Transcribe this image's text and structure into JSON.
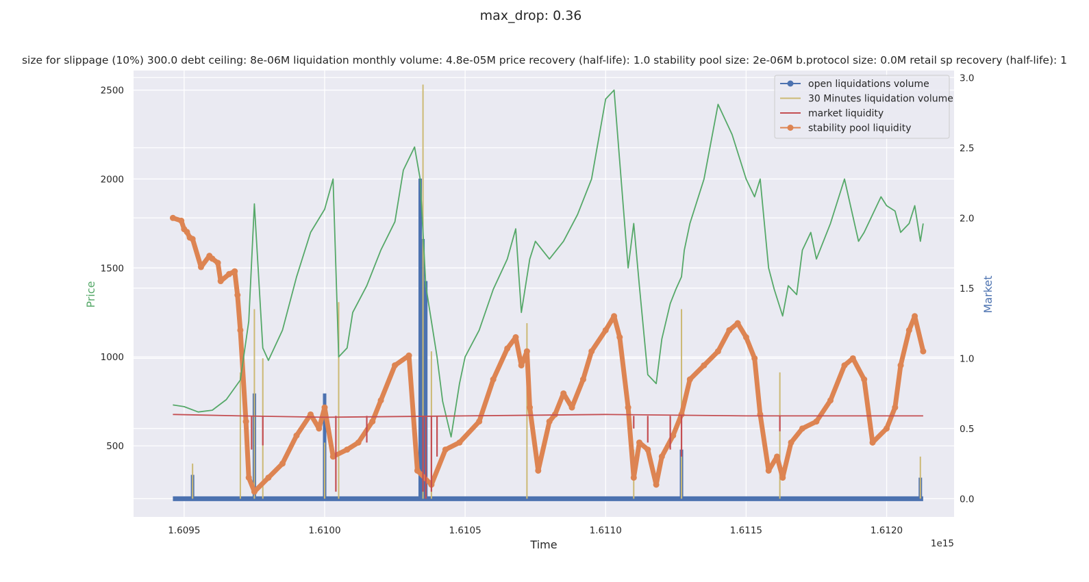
{
  "chart_data": {
    "type": "line",
    "suptitle": "max_drop: 0.36",
    "title": "size for slippage (10%) 300.0 debt ceiling: 8e-06M liquidation monthly volume: 4.8e-05M price recovery (half-life): 1.0 stability pool size: 2e-06M b.protocol size: 0.0M retail sp recovery (half-life): 1",
    "xlabel": "Time",
    "x_offset_label": "1e15",
    "ylabel_left": "Price",
    "ylabel_right": "Market",
    "xlim": [
      1.60932,
      1.61224
    ],
    "ylim_left": [
      100,
      2610
    ],
    "ylim_right": [
      -0.13,
      3.05
    ],
    "x_ticks": [
      1.6095,
      1.61,
      1.6105,
      1.611,
      1.6115,
      1.612
    ],
    "x_tick_labels": [
      "1.6095",
      "1.6100",
      "1.6105",
      "1.6110",
      "1.6115",
      "1.6120"
    ],
    "y_left_ticks": [
      500,
      1000,
      1500,
      2000,
      2500
    ],
    "y_left_tick_labels": [
      "500",
      "1000",
      "1500",
      "2000",
      "2500"
    ],
    "y_right_ticks": [
      0.0,
      0.5,
      1.0,
      1.5,
      2.0,
      2.5,
      3.0
    ],
    "y_right_tick_labels": [
      "0.0",
      "0.5",
      "1.0",
      "1.5",
      "2.0",
      "2.5",
      "3.0"
    ],
    "grid": true,
    "legend_position": "top-right",
    "colors": {
      "price": "#55a868",
      "open_liquidations": "#4c72b0",
      "liquidation_volume": "#ccb974",
      "market_liquidity": "#c44e52",
      "stability_pool": "#dd8452",
      "plot_bg": "#eaeaf2",
      "grid": "#ffffff"
    },
    "price_series": {
      "name": "Price",
      "axis": "left",
      "x": [
        1.60946,
        1.6095,
        1.60955,
        1.6096,
        1.60965,
        1.6097,
        1.60973,
        1.60975,
        1.60978,
        1.6098,
        1.60985,
        1.6099,
        1.60995,
        1.61,
        1.61003,
        1.61005,
        1.61008,
        1.6101,
        1.61015,
        1.6102,
        1.61025,
        1.61028,
        1.61032,
        1.61034,
        1.61036,
        1.61038,
        1.6104,
        1.61042,
        1.61045,
        1.61048,
        1.6105,
        1.61055,
        1.6106,
        1.61065,
        1.61068,
        1.6107,
        1.61073,
        1.61075,
        1.6108,
        1.61085,
        1.6109,
        1.61095,
        1.611,
        1.61103,
        1.61105,
        1.61108,
        1.6111,
        1.61112,
        1.61115,
        1.61118,
        1.6112,
        1.61123,
        1.61125,
        1.61127,
        1.61128,
        1.6113,
        1.61135,
        1.6114,
        1.61145,
        1.6115,
        1.61153,
        1.61155,
        1.61158,
        1.6116,
        1.61163,
        1.61165,
        1.61168,
        1.6117,
        1.61173,
        1.61175,
        1.6118,
        1.61185,
        1.6119,
        1.61192,
        1.61195,
        1.61198,
        1.612,
        1.61203,
        1.61205,
        1.61208,
        1.6121,
        1.61212,
        1.61213
      ],
      "y": [
        730,
        720,
        690,
        700,
        760,
        870,
        1200,
        1860,
        1050,
        980,
        1150,
        1450,
        1700,
        1830,
        2000,
        1000,
        1050,
        1250,
        1400,
        1600,
        1760,
        2050,
        2180,
        2000,
        1400,
        1200,
        1000,
        750,
        550,
        850,
        1000,
        1150,
        1380,
        1550,
        1720,
        1250,
        1550,
        1650,
        1550,
        1650,
        1800,
        2000,
        2450,
        2500,
        2100,
        1500,
        1750,
        1400,
        900,
        850,
        1100,
        1300,
        1380,
        1450,
        1600,
        1750,
        2000,
        2420,
        2250,
        2000,
        1900,
        2000,
        1500,
        1380,
        1230,
        1400,
        1350,
        1600,
        1700,
        1550,
        1750,
        2000,
        1650,
        1700,
        1800,
        1900,
        1850,
        1820,
        1700,
        1750,
        1850,
        1650,
        1750
      ]
    },
    "stability_pool_series": {
      "name": "stability pool liquidity",
      "axis": "right",
      "x": [
        1.60946,
        1.60949,
        1.6095,
        1.60951,
        1.60952,
        1.60953,
        1.60956,
        1.60959,
        1.6096,
        1.60962,
        1.60963,
        1.60966,
        1.60968,
        1.60969,
        1.6097,
        1.60972,
        1.60973,
        1.60975,
        1.6098,
        1.60985,
        1.6099,
        1.60995,
        1.60998,
        1.61,
        1.61003,
        1.61008,
        1.61012,
        1.61017,
        1.6102,
        1.61025,
        1.6103,
        1.61033,
        1.61038,
        1.61043,
        1.61048,
        1.61055,
        1.6106,
        1.61065,
        1.61068,
        1.6107,
        1.61072,
        1.61073,
        1.61076,
        1.6108,
        1.61082,
        1.61085,
        1.61088,
        1.61092,
        1.61095,
        1.611,
        1.61103,
        1.61105,
        1.61108,
        1.6111,
        1.61112,
        1.61115,
        1.61118,
        1.6112,
        1.61124,
        1.61127,
        1.6113,
        1.61135,
        1.6114,
        1.61144,
        1.61147,
        1.6115,
        1.61153,
        1.61155,
        1.61158,
        1.61161,
        1.61163,
        1.61166,
        1.6117,
        1.61175,
        1.6118,
        1.61185,
        1.61188,
        1.61192,
        1.61195,
        1.612,
        1.61203,
        1.61205,
        1.61208,
        1.6121,
        1.61213
      ],
      "y": [
        2.0,
        1.98,
        1.92,
        1.9,
        1.86,
        1.85,
        1.65,
        1.73,
        1.71,
        1.68,
        1.55,
        1.6,
        1.62,
        1.45,
        1.2,
        0.55,
        0.15,
        0.05,
        0.15,
        0.25,
        0.45,
        0.6,
        0.5,
        0.65,
        0.3,
        0.35,
        0.4,
        0.55,
        0.7,
        0.95,
        1.02,
        0.2,
        0.1,
        0.35,
        0.4,
        0.55,
        0.85,
        1.07,
        1.15,
        0.95,
        1.05,
        0.65,
        0.2,
        0.55,
        0.6,
        0.75,
        0.65,
        0.85,
        1.05,
        1.2,
        1.3,
        1.15,
        0.65,
        0.15,
        0.4,
        0.35,
        0.1,
        0.3,
        0.45,
        0.6,
        0.85,
        0.95,
        1.05,
        1.2,
        1.25,
        1.15,
        1.0,
        0.6,
        0.2,
        0.3,
        0.15,
        0.4,
        0.5,
        0.55,
        0.7,
        0.95,
        1.0,
        0.85,
        0.4,
        0.5,
        0.65,
        0.95,
        1.2,
        1.3,
        1.05
      ]
    },
    "market_liquidity_series": {
      "name": "market liquidity",
      "axis": "right",
      "x": [
        1.60946,
        1.6097,
        1.61,
        1.6105,
        1.611,
        1.6115,
        1.612,
        1.61213
      ],
      "y": [
        0.6,
        0.59,
        0.58,
        0.59,
        0.6,
        0.59,
        0.59,
        0.59
      ],
      "dips_x": [
        1.60974,
        1.60978,
        1.61004,
        1.61015,
        1.61035,
        1.61036,
        1.61038,
        1.6104,
        1.6111,
        1.61115,
        1.61123,
        1.61127,
        1.61162
      ],
      "dips_y": [
        0.35,
        0.38,
        0.05,
        0.4,
        0.05,
        0.0,
        0.05,
        0.3,
        0.5,
        0.4,
        0.35,
        0.3,
        0.48
      ]
    },
    "open_liquidations_series": {
      "name": "open liquidations volume",
      "axis": "right",
      "baseline": 0.0,
      "spike_x": [
        1.60953,
        1.60975,
        1.61,
        1.61034,
        1.61035,
        1.61036,
        1.61127,
        1.61212
      ],
      "spike_y": [
        0.17,
        0.75,
        0.75,
        2.28,
        1.85,
        1.55,
        0.35,
        0.15
      ]
    },
    "liquidation_volume_series": {
      "name": "30 Minutes liquidation volume",
      "axis": "right",
      "baseline": 0.0,
      "spike_x": [
        1.60953,
        1.6097,
        1.60975,
        1.60978,
        1.61005,
        1.61,
        1.61035,
        1.61038,
        1.61072,
        1.6111,
        1.61127,
        1.61162,
        1.61212
      ],
      "spike_y": [
        0.25,
        0.9,
        1.35,
        1.0,
        1.4,
        0.4,
        2.95,
        1.05,
        1.25,
        0.35,
        1.35,
        0.9,
        0.3
      ]
    },
    "legend": [
      {
        "label": "open liquidations volume",
        "color": "#4c72b0",
        "marker": true
      },
      {
        "label": "30 Minutes liquidation volume",
        "color": "#ccb974",
        "marker": false
      },
      {
        "label": "market liquidity",
        "color": "#c44e52",
        "marker": false
      },
      {
        "label": "stability pool liquidity",
        "color": "#dd8452",
        "marker": true
      }
    ]
  }
}
